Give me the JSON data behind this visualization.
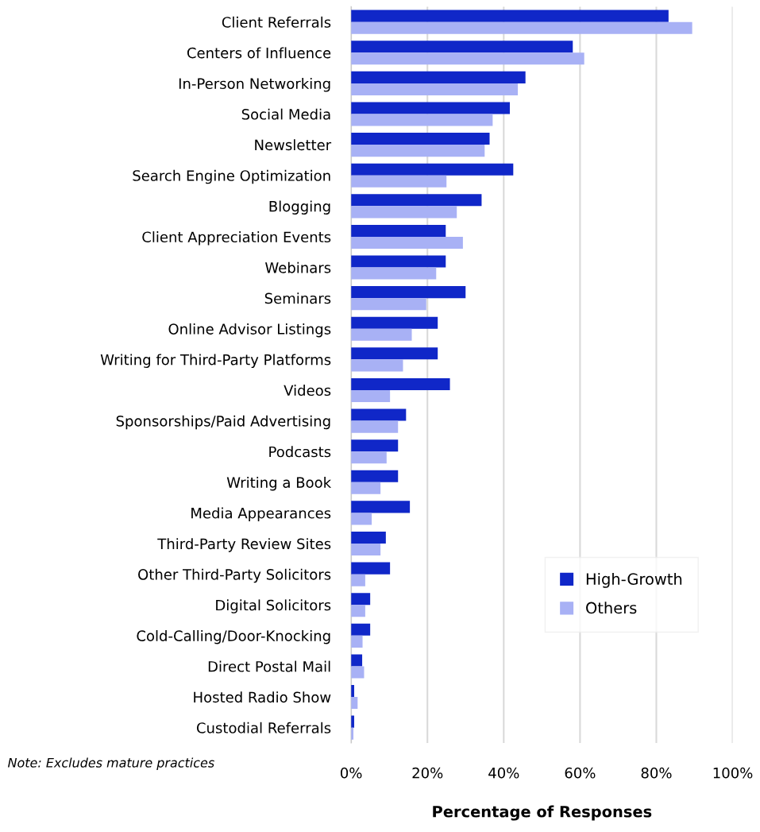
{
  "chart_data": {
    "type": "bar",
    "orientation": "horizontal",
    "xlabel": "Percentage of Responses",
    "categories": [
      "Client Referrals",
      "Centers of Influence",
      "In-Person Networking",
      "Social Media",
      "Newsletter",
      "Search Engine Optimization",
      "Blogging",
      "Client Appreciation Events",
      "Webinars",
      "Seminars",
      "Online Advisor Listings",
      "Writing for Third-Party Platforms",
      "Videos",
      "Sponsorships/Paid Advertising",
      "Podcasts",
      "Writing a Book",
      "Media Appearances",
      "Third-Party Review Sites",
      "Other Third-Party Solicitors",
      "Digital Solicitors",
      "Cold-Calling/Door-Knocking",
      "Direct Postal Mail",
      "Hosted Radio Show",
      "Custodial Referrals"
    ],
    "series": [
      {
        "name": "High-Growth",
        "color": "#1027c8",
        "values": [
          83.2,
          58.1,
          45.7,
          41.6,
          36.3,
          42.5,
          34.2,
          24.8,
          24.8,
          30.0,
          22.7,
          22.7,
          25.9,
          14.4,
          12.3,
          12.3,
          15.4,
          9.1,
          10.2,
          5.0,
          5.0,
          2.9,
          0.8,
          0.8
        ]
      },
      {
        "name": "Others",
        "color": "#a8b1f5",
        "values": [
          89.4,
          61.1,
          43.7,
          37.1,
          35.0,
          25.0,
          27.7,
          29.3,
          22.3,
          19.7,
          15.9,
          13.6,
          10.2,
          12.3,
          9.3,
          7.7,
          5.4,
          7.7,
          3.7,
          3.7,
          3.0,
          3.4,
          1.7,
          0.6
        ]
      }
    ],
    "xlim": [
      0,
      100
    ],
    "xticks": [
      {
        "value": 0,
        "label": "0%"
      },
      {
        "value": 20,
        "label": "20%"
      },
      {
        "value": 40,
        "label": "40%"
      },
      {
        "value": 60,
        "label": "60%"
      },
      {
        "value": 80,
        "label": "80%"
      },
      {
        "value": 100,
        "label": "100%"
      }
    ],
    "grid": "x",
    "legend": "bottom right",
    "annotations": [
      "Note: Excludes mature practices"
    ]
  }
}
